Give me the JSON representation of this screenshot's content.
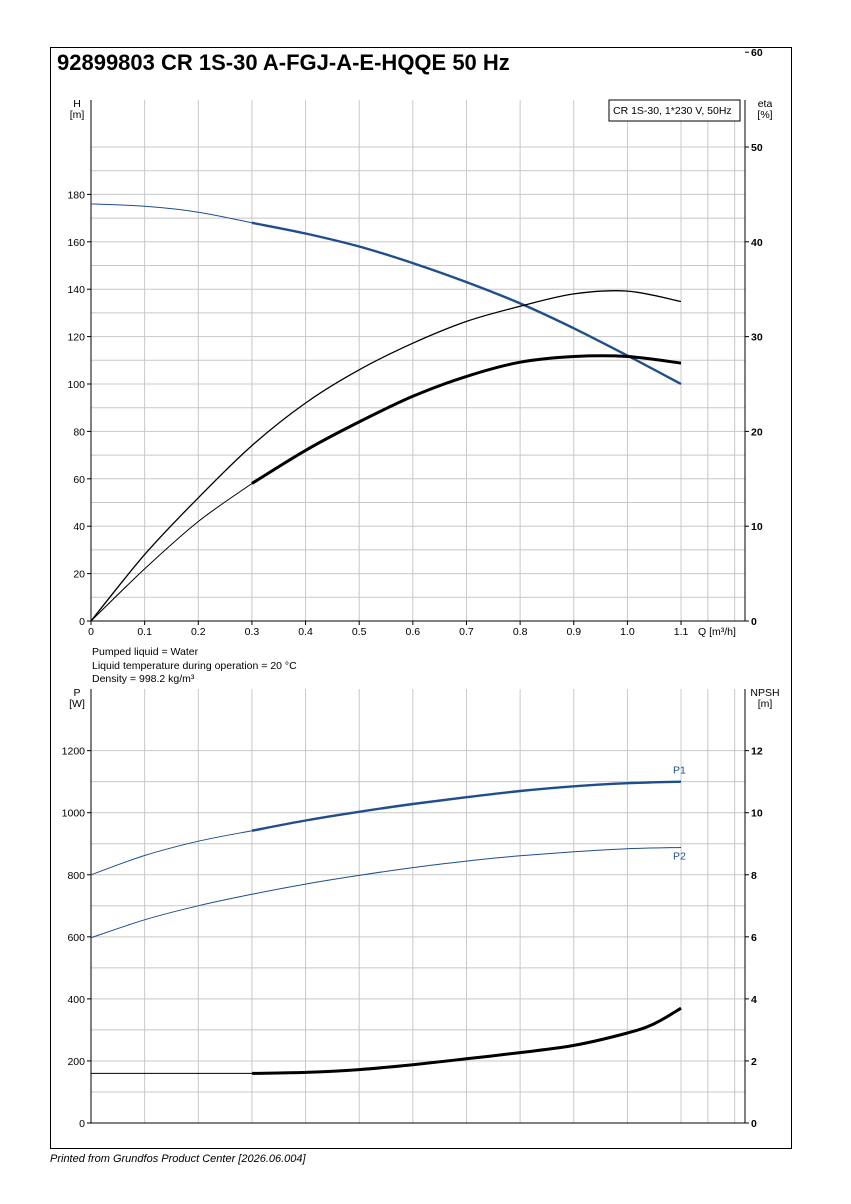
{
  "title": "92899803 CR 1S-30 A-FGJ-A-E-HQQE 50 Hz",
  "footer": "Printed from Grundfos Product Center [2026.06.004]",
  "liquid_info": [
    "Pumped liquid = Water",
    "Liquid temperature during operation = 20 °C",
    "Density = 998.2 kg/m³"
  ],
  "colors": {
    "blue": "#1f4e8c",
    "black": "#000000",
    "grid": "#c8c8c8"
  },
  "chart_data": [
    {
      "type": "line",
      "legend_box": "CR 1S-30, 1*230 V, 50Hz",
      "xlabel": "Q [m³/h]",
      "x_ticks": [
        "0",
        "0.1",
        "0.2",
        "0.3",
        "0.4",
        "0.5",
        "0.6",
        "0.7",
        "0.8",
        "0.9",
        "1.0",
        "1.1"
      ],
      "xlim": [
        0,
        1.2
      ],
      "left_axis": {
        "label": [
          "H",
          "[m]"
        ],
        "ticks": [
          0,
          20,
          40,
          60,
          80,
          100,
          120,
          140,
          160,
          180
        ],
        "lim": [
          0,
          200
        ]
      },
      "right_axis": {
        "label": [
          "eta",
          "[%]"
        ],
        "ticks": [
          0,
          10,
          20,
          30,
          40,
          50,
          60
        ],
        "lim": [
          0,
          60
        ]
      },
      "grid": true,
      "series": [
        {
          "axis": "left",
          "color": "#1f4e8c",
          "thin_until": 0.3,
          "x": [
            0,
            0.1,
            0.2,
            0.3,
            0.4,
            0.5,
            0.6,
            0.7,
            0.8,
            0.9,
            1.0,
            1.1
          ],
          "y": [
            176,
            175,
            172.5,
            168,
            163.5,
            158,
            151,
            143,
            134,
            123.5,
            112,
            100
          ]
        },
        {
          "axis": "right",
          "color": "#000000",
          "thin_until": 1.2,
          "thin_width": 1.3,
          "x": [
            0,
            0.1,
            0.2,
            0.3,
            0.4,
            0.5,
            0.6,
            0.7,
            0.8,
            0.9,
            1.0,
            1.1
          ],
          "y": [
            0,
            7,
            13,
            18.5,
            23,
            26.5,
            29.3,
            31.6,
            33.2,
            34.5,
            34.8,
            33.7
          ]
        },
        {
          "axis": "right",
          "color": "#000000",
          "thin_until": 0.3,
          "thick_width": 3,
          "x": [
            0,
            0.1,
            0.2,
            0.3,
            0.4,
            0.5,
            0.6,
            0.7,
            0.8,
            0.9,
            1.0,
            1.1
          ],
          "y": [
            0,
            5.5,
            10.5,
            14.5,
            18,
            21,
            23.7,
            25.8,
            27.3,
            27.9,
            27.9,
            27.2
          ]
        }
      ]
    },
    {
      "type": "line",
      "left_axis": {
        "label": [
          "P",
          "[W]"
        ],
        "ticks": [
          0,
          200,
          400,
          600,
          800,
          1000,
          1200
        ],
        "lim": [
          0,
          1200
        ]
      },
      "right_axis": {
        "label": [
          "NPSH",
          "[m]"
        ],
        "ticks": [
          0,
          2,
          4,
          6,
          8,
          10,
          12
        ],
        "lim": [
          0,
          12
        ]
      },
      "xlim": [
        0,
        1.2
      ],
      "grid": true,
      "series": [
        {
          "name": "P1",
          "axis": "left",
          "color": "#1f4e8c",
          "thin_until": 0.3,
          "x": [
            0,
            0.1,
            0.2,
            0.3,
            0.4,
            0.5,
            0.6,
            0.7,
            0.8,
            0.9,
            1.0,
            1.1
          ],
          "y": [
            800,
            862,
            908,
            942,
            975,
            1003,
            1028,
            1050,
            1070,
            1085,
            1095,
            1100
          ]
        },
        {
          "name": "P2",
          "axis": "left",
          "color": "#1f4e8c",
          "thin_until": 1.2,
          "x": [
            0,
            0.1,
            0.2,
            0.3,
            0.4,
            0.5,
            0.6,
            0.7,
            0.8,
            0.9,
            1.0,
            1.1
          ],
          "y": [
            597,
            655,
            700,
            737,
            770,
            798,
            823,
            844,
            861,
            874,
            884,
            888
          ]
        },
        {
          "axis": "right",
          "color": "#000000",
          "thin_until": 0.3,
          "thick_width": 3,
          "x": [
            0,
            0.1,
            0.2,
            0.3,
            0.4,
            0.5,
            0.6,
            0.7,
            0.8,
            0.9,
            1.0,
            1.05,
            1.1
          ],
          "y": [
            1.6,
            1.6,
            1.6,
            1.6,
            1.63,
            1.72,
            1.88,
            2.07,
            2.27,
            2.5,
            2.9,
            3.2,
            3.7
          ]
        }
      ]
    }
  ]
}
